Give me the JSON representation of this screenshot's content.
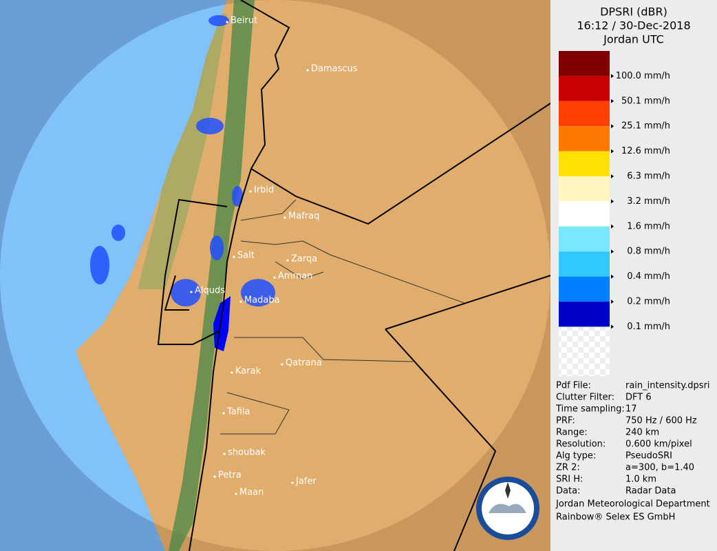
{
  "header": {
    "title": "DPSRI (dBR)",
    "time": "16:12 / 30-Dec-2018",
    "zone": "Jordan UTC"
  },
  "legend": {
    "colors": [
      "#800000",
      "#c80000",
      "#ff4000",
      "#ff7800",
      "#ffe000",
      "#fff6c0",
      "#ffffff",
      "#78e8ff",
      "#30c8ff",
      "#0080ff",
      "#0000c8"
    ],
    "labels": [
      "100.0 mm/h",
      "50.1 mm/h",
      "25.1 mm/h",
      "12.6 mm/h",
      "6.3 mm/h",
      "3.2 mm/h",
      "1.6 mm/h",
      "0.8 mm/h",
      "0.4 mm/h",
      "0.2 mm/h",
      "0.1 mm/h"
    ]
  },
  "cities": [
    "Beirut",
    "Damascus",
    "Irbid",
    "Mafraq",
    "Salt",
    "Zarqa",
    "Amman",
    "Alquds",
    "Madaba",
    "Qatrana",
    "Karak",
    "Tafila",
    "shoubak",
    "Petra",
    "Jafer",
    "Maan"
  ],
  "info": {
    "rows": [
      [
        "Pdf File:",
        "rain_intensity.dpsri"
      ],
      [
        "Clutter Filter:",
        "DFT 6"
      ],
      [
        "Time sampling:",
        "17"
      ],
      [
        "PRF:",
        "750 Hz / 600 Hz"
      ],
      [
        "Range:",
        "240 km"
      ],
      [
        "Resolution:",
        "0.600 km/pixel"
      ],
      [
        "Alg type:",
        "PseudoSRI"
      ],
      [
        "ZR 2:",
        "a=300, b=1.40"
      ],
      [
        "SRI H:",
        "1.0 km"
      ],
      [
        "Data:",
        "Radar Data"
      ]
    ],
    "footer": [
      "Jordan Meteorological Department",
      "Rainbow® Selex ES GmbH"
    ]
  }
}
